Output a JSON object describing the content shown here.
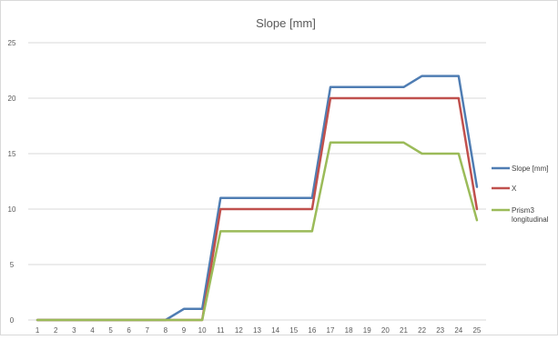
{
  "chart_data": {
    "type": "line",
    "title": "Slope [mm]",
    "xlabel": "",
    "ylabel": "",
    "ylim": [
      0,
      25
    ],
    "yticks": [
      0,
      5,
      10,
      15,
      20,
      25
    ],
    "grid": true,
    "legend_position": "right",
    "categories": [
      "1",
      "2",
      "3",
      "4",
      "5",
      "6",
      "7",
      "8",
      "9",
      "10",
      "11",
      "12",
      "13",
      "14",
      "15",
      "16",
      "17",
      "18",
      "19",
      "20",
      "21",
      "22",
      "23",
      "24",
      "25"
    ],
    "series": [
      {
        "name": "Slope [mm]",
        "color": "#4F7DB3",
        "values": [
          0,
          0,
          0,
          0,
          0,
          0,
          0,
          0,
          1,
          1,
          11,
          11,
          11,
          11,
          11,
          11,
          21,
          21,
          21,
          21,
          21,
          22,
          22,
          22,
          12
        ]
      },
      {
        "name": "X",
        "color": "#C0504D",
        "values": [
          0,
          0,
          0,
          0,
          0,
          0,
          0,
          0,
          0,
          0,
          10,
          10,
          10,
          10,
          10,
          10,
          20,
          20,
          20,
          20,
          20,
          20,
          20,
          20,
          10
        ]
      },
      {
        "name": "Prism3 longitudinal",
        "legend_lines": [
          "Prism3",
          "longitudinal"
        ],
        "color": "#9BBB59",
        "values": [
          0,
          0,
          0,
          0,
          0,
          0,
          0,
          0,
          0,
          0,
          8,
          8,
          8,
          8,
          8,
          8,
          16,
          16,
          16,
          16,
          16,
          15,
          15,
          15,
          9
        ]
      }
    ]
  }
}
